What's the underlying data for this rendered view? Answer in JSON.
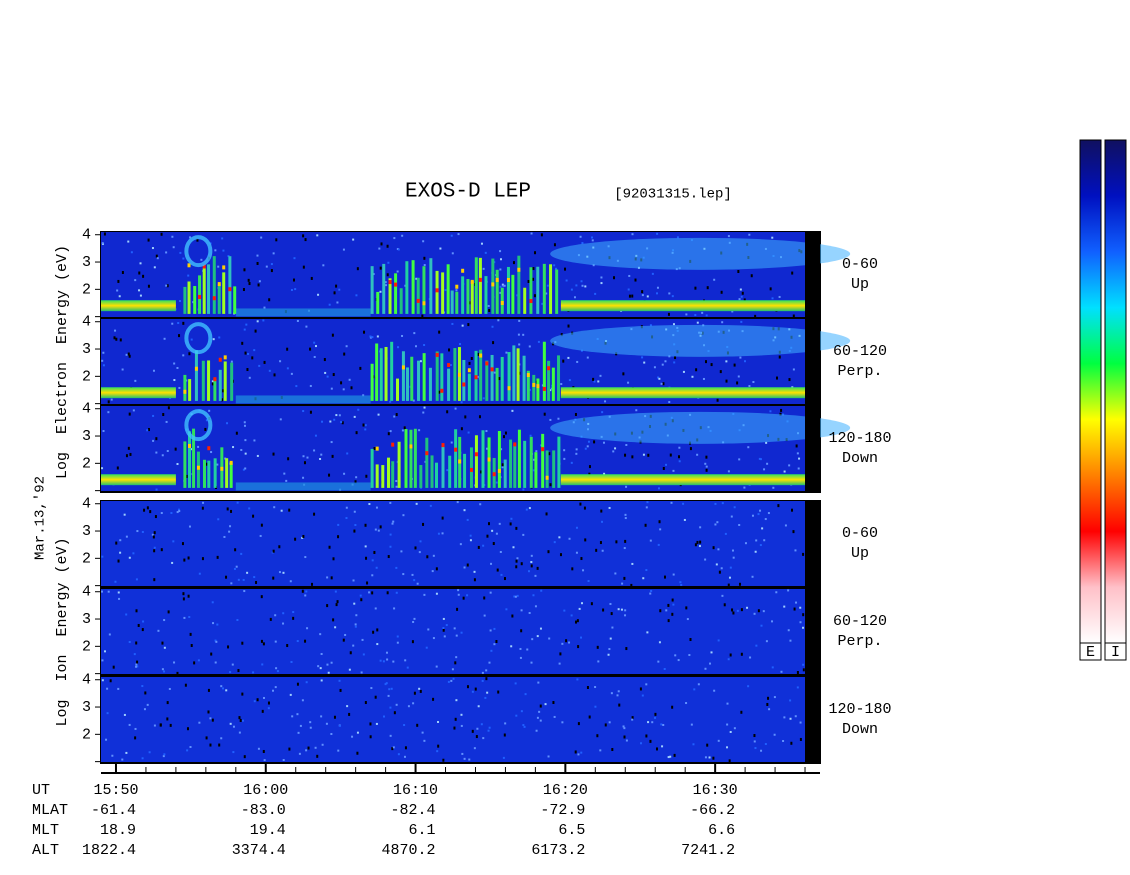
{
  "title": "EXOS-D LEP",
  "file_label": "[92031315.lep]",
  "chart_data": {
    "type": "spectrogram",
    "date_label": "Mar.13,'92",
    "xlim": [
      "15:49",
      "16:37"
    ],
    "xticks": [
      "15:50",
      "16:00",
      "16:10",
      "16:20",
      "16:30"
    ],
    "minor_xtick_step": 2,
    "x_label": "UT",
    "ylim": [
      0.95,
      4.1
    ],
    "yticks": [
      2,
      3,
      4
    ],
    "unlabeled_yticks": [
      1
    ],
    "groups": [
      {
        "axis_label": "Log  Electron  Energy (eV)",
        "panels": [
          {
            "label": "0-60",
            "sublabel": "Up"
          },
          {
            "label": "60-120",
            "sublabel": "Perp."
          },
          {
            "label": "120-180",
            "sublabel": "Down"
          }
        ]
      },
      {
        "axis_label": "Log  Ion  Energy (eV)",
        "panels": [
          {
            "label": "0-60",
            "sublabel": "Up"
          },
          {
            "label": "60-120",
            "sublabel": "Perp."
          },
          {
            "label": "120-180",
            "sublabel": "Down"
          }
        ]
      }
    ],
    "ephemeris": [
      {
        "name": "MLAT",
        "values": [
          -61.4,
          -83.0,
          -82.4,
          -72.9,
          -66.2
        ],
        "value_labels": [
          "-61.4",
          "-83.0",
          "-82.4",
          "-72.9",
          "-66.2"
        ]
      },
      {
        "name": "MLT",
        "values": [
          18.9,
          19.4,
          6.1,
          6.5,
          6.6
        ]
      },
      {
        "name": "ALT",
        "values": [
          1822.4,
          3374.4,
          4870.2,
          6173.2,
          7241.2
        ]
      }
    ],
    "colorbar": {
      "labels": [
        "E",
        "I"
      ],
      "colors": [
        "#101060",
        "#0010c0",
        "#1060ff",
        "#00e0ff",
        "#00ff40",
        "#ffff00",
        "#ff8000",
        "#ff0000",
        "#ffc0c8",
        "#ffffff"
      ]
    }
  }
}
